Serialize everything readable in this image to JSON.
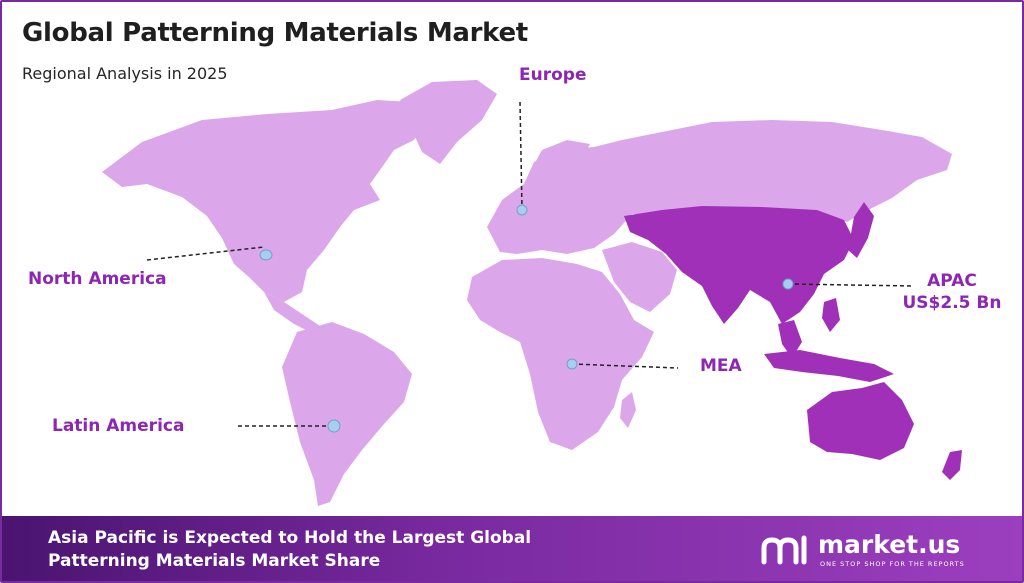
{
  "header": {
    "title": "Global Patterning Materials Market",
    "subtitle": "Regional Analysis in 2025"
  },
  "regions": {
    "north_america": {
      "label": "North America",
      "highlighted": false
    },
    "europe": {
      "label": "Europe",
      "highlighted": false
    },
    "apac": {
      "label": "APAC",
      "value": "US$2.5 Bn",
      "highlighted": true
    },
    "mea": {
      "label": "MEA",
      "highlighted": false
    },
    "latin_america": {
      "label": "Latin America",
      "highlighted": false
    }
  },
  "footer": {
    "text": "Asia Pacific is Expected to Hold the Largest Global Patterning Materials Market Share"
  },
  "logo": {
    "name": "market.us",
    "tagline": "ONE STOP SHOP FOR THE REPORTS"
  },
  "colors": {
    "land": "#dca6ea",
    "highlight": "#a030b8",
    "accent": "#8d26b3",
    "marker": "#a9cdee",
    "footer_start": "#4a1470",
    "footer_end": "#9c3fbf"
  }
}
